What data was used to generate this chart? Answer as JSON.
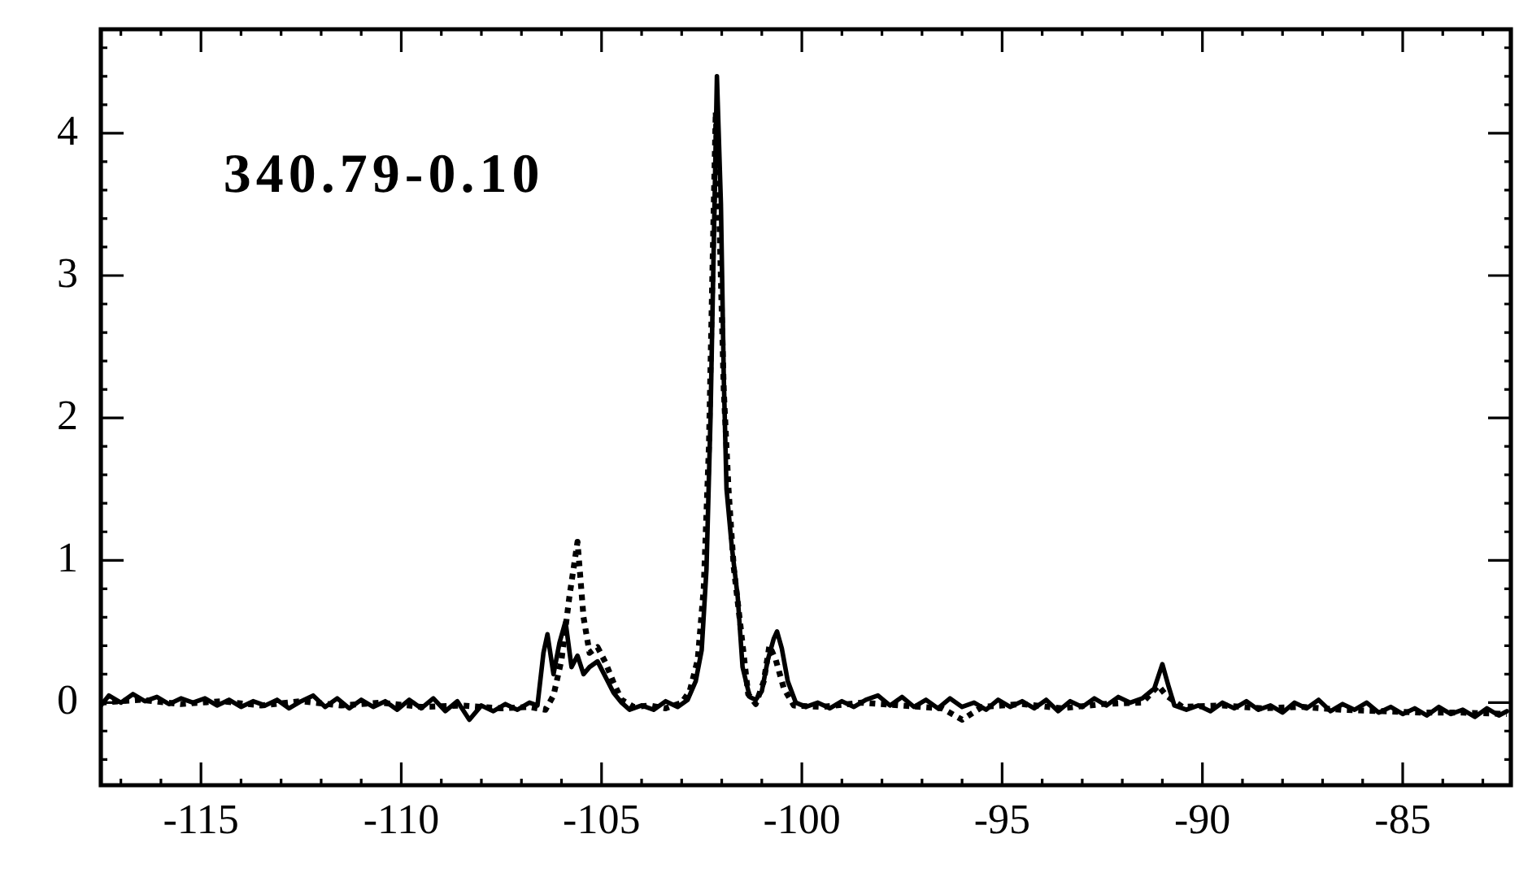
{
  "chart_data": {
    "type": "line",
    "annotations": [
      "340.79-0.10"
    ],
    "xlim": [
      -117.5,
      -82.3
    ],
    "ylim": [
      -0.58,
      4.73
    ],
    "xticks": [
      {
        "value": -117,
        "label": null
      },
      {
        "value": -116,
        "label": null
      },
      -115,
      {
        "value": -114,
        "label": null
      },
      {
        "value": -113,
        "label": null
      },
      {
        "value": -112,
        "label": null
      },
      {
        "value": -111,
        "label": null
      },
      -110,
      {
        "value": -109,
        "label": null
      },
      {
        "value": -108,
        "label": null
      },
      {
        "value": -107,
        "label": null
      },
      {
        "value": -106,
        "label": null
      },
      -105,
      {
        "value": -104,
        "label": null
      },
      {
        "value": -103,
        "label": null
      },
      {
        "value": -102,
        "label": null
      },
      {
        "value": -101,
        "label": null
      },
      -100,
      {
        "value": -99,
        "label": null
      },
      {
        "value": -98,
        "label": null
      },
      {
        "value": -97,
        "label": null
      },
      {
        "value": -96,
        "label": null
      },
      -95,
      {
        "value": -94,
        "label": null
      },
      {
        "value": -93,
        "label": null
      },
      {
        "value": -92,
        "label": null
      },
      {
        "value": -91,
        "label": null
      },
      -90,
      {
        "value": -89,
        "label": null
      },
      {
        "value": -88,
        "label": null
      },
      {
        "value": -87,
        "label": null
      },
      {
        "value": -86,
        "label": null
      },
      -85,
      {
        "value": -84,
        "label": null
      },
      {
        "value": -83,
        "label": null
      }
    ],
    "yticks": [
      {
        "value": -0.4,
        "label": null
      },
      {
        "value": -0.2,
        "label": null
      },
      0,
      {
        "value": 0.2,
        "label": null
      },
      {
        "value": 0.4,
        "label": null
      },
      {
        "value": 0.6,
        "label": null
      },
      {
        "value": 0.8,
        "label": null
      },
      1,
      {
        "value": 1.2,
        "label": null
      },
      {
        "value": 1.4,
        "label": null
      },
      {
        "value": 1.6,
        "label": null
      },
      {
        "value": 1.8,
        "label": null
      },
      2,
      {
        "value": 2.2,
        "label": null
      },
      {
        "value": 2.4,
        "label": null
      },
      {
        "value": 2.6,
        "label": null
      },
      {
        "value": 2.8,
        "label": null
      },
      3,
      {
        "value": 3.2,
        "label": null
      },
      {
        "value": 3.4,
        "label": null
      },
      {
        "value": 3.6,
        "label": null
      },
      {
        "value": 3.8,
        "label": null
      },
      4,
      {
        "value": 4.2,
        "label": null
      },
      {
        "value": 4.4,
        "label": null
      },
      {
        "value": 4.6,
        "label": null
      }
    ],
    "series": [
      {
        "color": "#000000",
        "line_style": "solid",
        "x": [
          -117.5,
          -117.3,
          -117.0,
          -116.7,
          -116.4,
          -116.1,
          -115.8,
          -115.5,
          -115.2,
          -114.9,
          -114.6,
          -114.3,
          -114.0,
          -113.7,
          -113.4,
          -113.1,
          -112.8,
          -112.5,
          -112.2,
          -111.9,
          -111.6,
          -111.3,
          -111.0,
          -110.7,
          -110.4,
          -110.1,
          -109.8,
          -109.5,
          -109.2,
          -108.9,
          -108.6,
          -108.3,
          -108.0,
          -107.7,
          -107.4,
          -107.1,
          -106.8,
          -106.6,
          -106.45,
          -106.35,
          -106.2,
          -106.05,
          -105.9,
          -105.75,
          -105.6,
          -105.45,
          -105.3,
          -105.1,
          -104.9,
          -104.7,
          -104.5,
          -104.3,
          -104.0,
          -103.7,
          -103.4,
          -103.1,
          -102.85,
          -102.65,
          -102.5,
          -102.38,
          -102.28,
          -102.2,
          -102.12,
          -102.02,
          -101.95,
          -101.88,
          -101.75,
          -101.6,
          -101.48,
          -101.3,
          -101.15,
          -101.0,
          -100.85,
          -100.7,
          -100.62,
          -100.5,
          -100.35,
          -100.15,
          -99.9,
          -99.6,
          -99.3,
          -99.0,
          -98.7,
          -98.4,
          -98.1,
          -97.8,
          -97.5,
          -97.2,
          -96.9,
          -96.6,
          -96.3,
          -96.0,
          -95.7,
          -95.4,
          -95.1,
          -94.8,
          -94.5,
          -94.2,
          -93.9,
          -93.6,
          -93.3,
          -93.0,
          -92.7,
          -92.4,
          -92.1,
          -91.8,
          -91.5,
          -91.2,
          -91.0,
          -90.85,
          -90.7,
          -90.4,
          -90.1,
          -89.8,
          -89.5,
          -89.2,
          -88.9,
          -88.6,
          -88.3,
          -88.0,
          -87.7,
          -87.4,
          -87.1,
          -86.8,
          -86.5,
          -86.2,
          -85.9,
          -85.6,
          -85.3,
          -85.0,
          -84.7,
          -84.4,
          -84.1,
          -83.8,
          -83.5,
          -83.2,
          -82.9,
          -82.6,
          -82.4
        ],
        "values": [
          -0.02,
          0.05,
          0.0,
          0.06,
          0.01,
          0.04,
          -0.01,
          0.03,
          0.0,
          0.03,
          -0.02,
          0.02,
          -0.03,
          0.01,
          -0.02,
          0.02,
          -0.04,
          0.01,
          0.05,
          -0.03,
          0.03,
          -0.04,
          0.02,
          -0.03,
          0.01,
          -0.05,
          0.02,
          -0.04,
          0.03,
          -0.06,
          0.01,
          -0.12,
          -0.02,
          -0.06,
          -0.01,
          -0.05,
          0.0,
          -0.02,
          0.35,
          0.48,
          0.2,
          0.42,
          0.57,
          0.25,
          0.33,
          0.2,
          0.25,
          0.29,
          0.18,
          0.07,
          0.0,
          -0.05,
          -0.02,
          -0.05,
          0.01,
          -0.03,
          0.02,
          0.15,
          0.37,
          0.94,
          2.0,
          3.2,
          4.4,
          3.5,
          2.3,
          1.5,
          1.1,
          0.74,
          0.25,
          0.04,
          0.02,
          0.08,
          0.3,
          0.45,
          0.5,
          0.38,
          0.15,
          0.0,
          -0.03,
          0.0,
          -0.04,
          0.01,
          -0.03,
          0.02,
          0.05,
          -0.02,
          0.04,
          -0.03,
          0.02,
          -0.04,
          0.03,
          -0.03,
          0.0,
          -0.05,
          0.02,
          -0.03,
          0.01,
          -0.04,
          0.02,
          -0.06,
          0.01,
          -0.03,
          0.03,
          -0.02,
          0.04,
          0.0,
          0.03,
          0.1,
          0.27,
          0.12,
          -0.02,
          -0.05,
          -0.02,
          -0.06,
          0.0,
          -0.04,
          0.01,
          -0.05,
          -0.02,
          -0.07,
          0.0,
          -0.04,
          0.02,
          -0.06,
          -0.01,
          -0.05,
          0.0,
          -0.07,
          -0.03,
          -0.08,
          -0.04,
          -0.09,
          -0.03,
          -0.08,
          -0.05,
          -0.1,
          -0.04,
          -0.09,
          -0.06
        ]
      },
      {
        "color": "#000000",
        "line_style": "dotted",
        "x": [
          -117.5,
          -116.5,
          -115.5,
          -114.5,
          -113.5,
          -112.5,
          -111.5,
          -110.5,
          -109.5,
          -108.5,
          -107.5,
          -106.8,
          -106.4,
          -106.2,
          -106.0,
          -105.8,
          -105.6,
          -105.45,
          -105.3,
          -105.1,
          -104.9,
          -104.7,
          -104.5,
          -104.2,
          -103.8,
          -103.4,
          -103.0,
          -102.8,
          -102.6,
          -102.45,
          -102.32,
          -102.22,
          -102.15,
          -102.05,
          -101.95,
          -101.83,
          -101.7,
          -101.54,
          -101.34,
          -101.15,
          -100.95,
          -100.81,
          -100.65,
          -100.45,
          -100.2,
          -99.5,
          -98.5,
          -97.5,
          -96.5,
          -96.0,
          -95.5,
          -94.5,
          -93.5,
          -92.5,
          -91.5,
          -91.1,
          -90.9,
          -90.5,
          -89.5,
          -88.5,
          -87.5,
          -86.5,
          -85.5,
          -84.5,
          -83.5,
          -82.4
        ],
        "values": [
          0.0,
          0.02,
          -0.01,
          0.01,
          -0.02,
          0.01,
          -0.02,
          0.0,
          -0.03,
          -0.02,
          -0.04,
          -0.03,
          -0.05,
          0.05,
          0.3,
          0.75,
          1.13,
          0.6,
          0.35,
          0.39,
          0.28,
          0.14,
          0.02,
          -0.03,
          -0.02,
          -0.04,
          0.0,
          0.08,
          0.3,
          0.8,
          1.8,
          3.2,
          4.15,
          3.3,
          2.2,
          1.5,
          0.95,
          0.56,
          0.06,
          -0.01,
          0.15,
          0.4,
          0.3,
          0.1,
          -0.02,
          -0.03,
          0.0,
          -0.02,
          -0.04,
          -0.12,
          -0.03,
          -0.01,
          -0.04,
          -0.01,
          0.0,
          0.12,
          0.05,
          -0.03,
          -0.02,
          -0.04,
          -0.03,
          -0.05,
          -0.06,
          -0.07,
          -0.07,
          -0.08
        ]
      }
    ]
  }
}
